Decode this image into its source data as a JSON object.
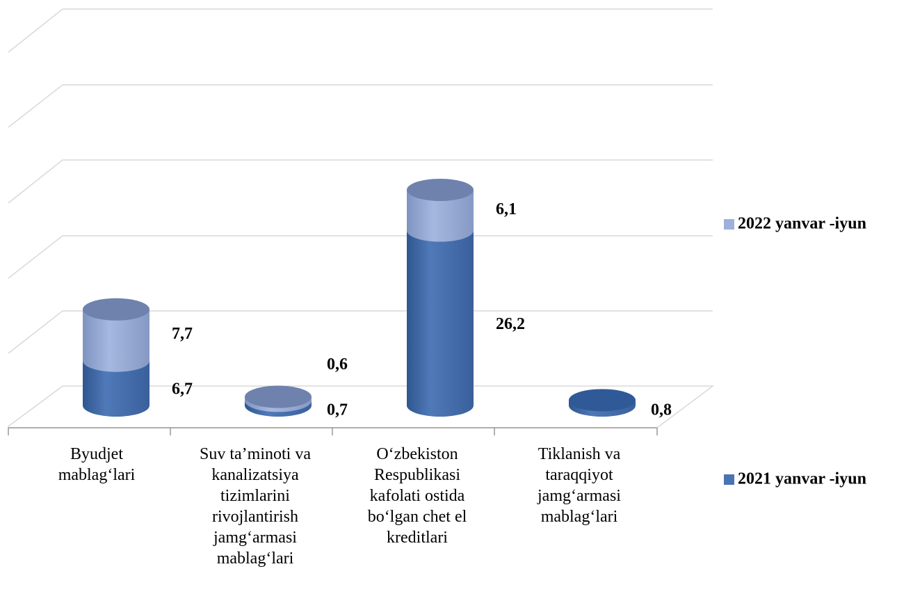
{
  "chart_data": {
    "type": "cylinder-stacked",
    "categories": [
      "Byudjet mablag‘lari",
      "Suv ta’minoti va kanalizatsiya tizimlarini rivojlantirish jamg‘armasi mablag‘lari",
      "O‘zbekiston Respublikasi kafolati ostida bo‘lgan chet el kreditlari",
      "Tiklanish va taraqqiyot jamg‘armasi mablag‘lari"
    ],
    "series": [
      {
        "name": "2021 yanvar -iyun",
        "color": "#4a73b2",
        "values": [
          6.7,
          0.7,
          26.2,
          0.8
        ],
        "value_labels": [
          "6,7",
          "0,7",
          "26,2",
          "0,8"
        ]
      },
      {
        "name": "2022 yanvar -iyun",
        "color": "#9db1da",
        "values": [
          7.7,
          0.6,
          6.1,
          null
        ],
        "value_labels": [
          "7,7",
          "0,6",
          "6,1",
          null
        ]
      }
    ],
    "grid": true
  }
}
